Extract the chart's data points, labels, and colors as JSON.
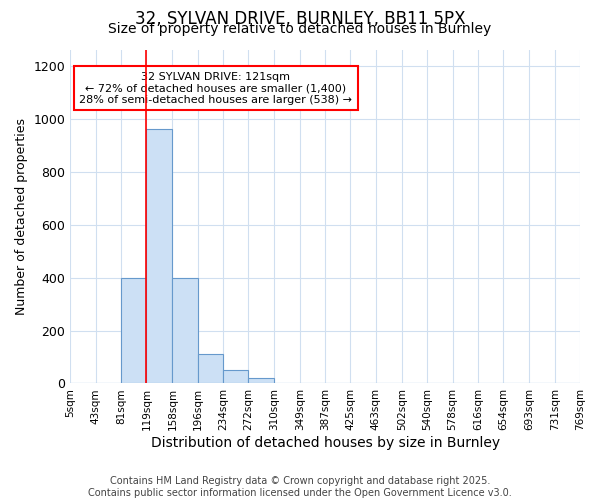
{
  "title_line1": "32, SYLVAN DRIVE, BURNLEY, BB11 5PX",
  "title_line2": "Size of property relative to detached houses in Burnley",
  "xlabel": "Distribution of detached houses by size in Burnley",
  "ylabel": "Number of detached properties",
  "bin_edges": [
    5,
    43,
    81,
    119,
    158,
    196,
    234,
    272,
    310,
    349,
    387,
    425,
    463,
    502,
    540,
    578,
    616,
    654,
    693,
    731,
    769
  ],
  "bar_heights": [
    0,
    0,
    400,
    960,
    400,
    110,
    50,
    20,
    0,
    0,
    0,
    0,
    0,
    0,
    0,
    0,
    0,
    0,
    0,
    0
  ],
  "bar_color": "#cce0f5",
  "bar_edge_color": "#6699cc",
  "bar_edge_width": 0.8,
  "red_line_x": 119,
  "annotation_text": "32 SYLVAN DRIVE: 121sqm\n← 72% of detached houses are smaller (1,400)\n28% of semi-detached houses are larger (538) →",
  "ylim": [
    0,
    1260
  ],
  "yticks": [
    0,
    200,
    400,
    600,
    800,
    1000,
    1200
  ],
  "tick_labels": [
    "5sqm",
    "43sqm",
    "81sqm",
    "119sqm",
    "158sqm",
    "196sqm",
    "234sqm",
    "272sqm",
    "310sqm",
    "349sqm",
    "387sqm",
    "425sqm",
    "463sqm",
    "502sqm",
    "540sqm",
    "578sqm",
    "616sqm",
    "654sqm",
    "693sqm",
    "731sqm",
    "769sqm"
  ],
  "footer_text": "Contains HM Land Registry data © Crown copyright and database right 2025.\nContains public sector information licensed under the Open Government Licence v3.0.",
  "background_color": "#ffffff",
  "grid_color": "#d0dff0",
  "title_fontsize": 12,
  "subtitle_fontsize": 10,
  "axis_label_fontsize": 9,
  "tick_fontsize": 7.5,
  "footer_fontsize": 7,
  "annotation_fontsize": 8
}
